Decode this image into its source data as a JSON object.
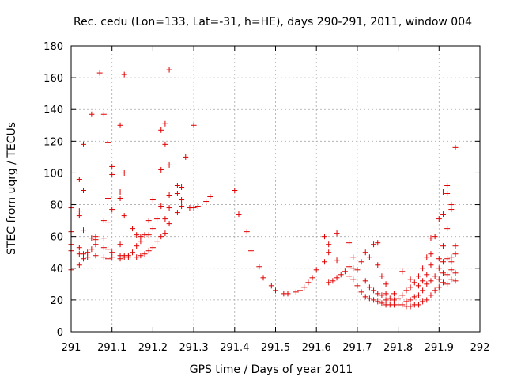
{
  "chart_data": {
    "type": "scatter",
    "title": "Rec. cedu (Lon=133, Lat=-31, h=HE), days 290-291, 2011, window 004",
    "xlabel": "GPS time / Days of year 2011",
    "ylabel": "STEC from uqrg / TECUs",
    "xlim": [
      291,
      292
    ],
    "ylim": [
      0,
      180
    ],
    "xticks": [
      291,
      291.1,
      291.2,
      291.3,
      291.4,
      291.5,
      291.6,
      291.7,
      291.8,
      291.9,
      292
    ],
    "xtick_labels": [
      "291",
      "291.1",
      "291.2",
      "291.3",
      "291.4",
      "291.5",
      "291.6",
      "291.7",
      "291.8",
      "291.9",
      "292"
    ],
    "yticks": [
      0,
      20,
      40,
      60,
      80,
      100,
      120,
      140,
      160,
      180
    ],
    "ytick_labels": [
      "0",
      "20",
      "40",
      "60",
      "80",
      "100",
      "120",
      "140",
      "160",
      "180"
    ],
    "grid": true,
    "marker": "+",
    "color": "#e00000",
    "series": [
      {
        "name": "STEC",
        "points": [
          [
            291.0,
            39
          ],
          [
            291.0,
            51
          ],
          [
            291.0,
            55
          ],
          [
            291.0,
            63
          ],
          [
            291.0,
            78
          ],
          [
            291.0,
            81
          ],
          [
            291.02,
            42
          ],
          [
            291.02,
            49
          ],
          [
            291.02,
            53
          ],
          [
            291.02,
            73
          ],
          [
            291.02,
            76
          ],
          [
            291.02,
            96
          ],
          [
            291.03,
            46
          ],
          [
            291.03,
            49
          ],
          [
            291.03,
            64
          ],
          [
            291.03,
            89
          ],
          [
            291.03,
            118
          ],
          [
            291.04,
            47
          ],
          [
            291.04,
            50
          ],
          [
            291.05,
            52
          ],
          [
            291.05,
            59
          ],
          [
            291.05,
            137
          ],
          [
            291.06,
            48
          ],
          [
            291.06,
            55
          ],
          [
            291.06,
            58
          ],
          [
            291.06,
            60
          ],
          [
            291.07,
            163
          ],
          [
            291.08,
            47
          ],
          [
            291.08,
            53
          ],
          [
            291.08,
            59
          ],
          [
            291.08,
            70
          ],
          [
            291.08,
            137
          ],
          [
            291.09,
            46
          ],
          [
            291.09,
            52
          ],
          [
            291.09,
            69
          ],
          [
            291.09,
            84
          ],
          [
            291.09,
            119
          ],
          [
            291.1,
            47
          ],
          [
            291.1,
            50
          ],
          [
            291.1,
            77
          ],
          [
            291.1,
            99
          ],
          [
            291.1,
            104
          ],
          [
            291.12,
            46
          ],
          [
            291.12,
            48
          ],
          [
            291.12,
            55
          ],
          [
            291.12,
            84
          ],
          [
            291.12,
            88
          ],
          [
            291.12,
            130
          ],
          [
            291.13,
            47
          ],
          [
            291.13,
            48
          ],
          [
            291.13,
            73
          ],
          [
            291.13,
            100
          ],
          [
            291.13,
            162
          ],
          [
            291.14,
            47
          ],
          [
            291.14,
            48
          ],
          [
            291.15,
            50
          ],
          [
            291.15,
            65
          ],
          [
            291.16,
            47
          ],
          [
            291.16,
            54
          ],
          [
            291.16,
            61
          ],
          [
            291.17,
            48
          ],
          [
            291.17,
            57
          ],
          [
            291.17,
            60
          ],
          [
            291.18,
            49
          ],
          [
            291.18,
            61
          ],
          [
            291.19,
            51
          ],
          [
            291.19,
            61
          ],
          [
            291.19,
            70
          ],
          [
            291.2,
            53
          ],
          [
            291.2,
            65
          ],
          [
            291.2,
            83
          ],
          [
            291.21,
            57
          ],
          [
            291.21,
            71
          ],
          [
            291.22,
            60
          ],
          [
            291.22,
            79
          ],
          [
            291.22,
            102
          ],
          [
            291.22,
            127
          ],
          [
            291.23,
            62
          ],
          [
            291.23,
            71
          ],
          [
            291.23,
            118
          ],
          [
            291.23,
            131
          ],
          [
            291.24,
            68
          ],
          [
            291.24,
            78
          ],
          [
            291.24,
            86
          ],
          [
            291.24,
            105
          ],
          [
            291.24,
            165
          ],
          [
            291.26,
            75
          ],
          [
            291.26,
            87
          ],
          [
            291.26,
            92
          ],
          [
            291.27,
            79
          ],
          [
            291.27,
            83
          ],
          [
            291.27,
            91
          ],
          [
            291.28,
            110
          ],
          [
            291.29,
            78
          ],
          [
            291.3,
            78
          ],
          [
            291.3,
            130
          ],
          [
            291.31,
            79
          ],
          [
            291.33,
            82
          ],
          [
            291.34,
            85
          ],
          [
            291.4,
            89
          ],
          [
            291.41,
            74
          ],
          [
            291.43,
            63
          ],
          [
            291.44,
            51
          ],
          [
            291.46,
            41
          ],
          [
            291.47,
            34
          ],
          [
            291.49,
            29
          ],
          [
            291.5,
            26
          ],
          [
            291.52,
            24
          ],
          [
            291.53,
            24
          ],
          [
            291.55,
            25
          ],
          [
            291.56,
            26
          ],
          [
            291.57,
            28
          ],
          [
            291.58,
            31
          ],
          [
            291.59,
            34
          ],
          [
            291.6,
            39
          ],
          [
            291.62,
            44
          ],
          [
            291.62,
            60
          ],
          [
            291.63,
            31
          ],
          [
            291.63,
            50
          ],
          [
            291.63,
            55
          ],
          [
            291.64,
            32
          ],
          [
            291.65,
            34
          ],
          [
            291.65,
            62
          ],
          [
            291.65,
            45
          ],
          [
            291.66,
            36
          ],
          [
            291.67,
            38
          ],
          [
            291.68,
            35
          ],
          [
            291.68,
            41
          ],
          [
            291.68,
            56
          ],
          [
            291.69,
            33
          ],
          [
            291.69,
            40
          ],
          [
            291.69,
            47
          ],
          [
            291.7,
            29
          ],
          [
            291.7,
            39
          ],
          [
            291.71,
            25
          ],
          [
            291.71,
            44
          ],
          [
            291.72,
            22
          ],
          [
            291.72,
            32
          ],
          [
            291.72,
            50
          ],
          [
            291.73,
            21
          ],
          [
            291.73,
            28
          ],
          [
            291.73,
            47
          ],
          [
            291.74,
            20
          ],
          [
            291.74,
            26
          ],
          [
            291.74,
            55
          ],
          [
            291.75,
            19
          ],
          [
            291.75,
            24
          ],
          [
            291.75,
            42
          ],
          [
            291.75,
            56
          ],
          [
            291.76,
            18
          ],
          [
            291.76,
            23
          ],
          [
            291.76,
            35
          ],
          [
            291.77,
            17
          ],
          [
            291.77,
            20
          ],
          [
            291.77,
            24
          ],
          [
            291.77,
            30
          ],
          [
            291.78,
            17
          ],
          [
            291.78,
            21
          ],
          [
            291.79,
            17
          ],
          [
            291.79,
            20
          ],
          [
            291.79,
            24
          ],
          [
            291.8,
            17
          ],
          [
            291.8,
            21
          ],
          [
            291.81,
            17
          ],
          [
            291.81,
            23
          ],
          [
            291.81,
            38
          ],
          [
            291.82,
            16
          ],
          [
            291.82,
            19
          ],
          [
            291.82,
            26
          ],
          [
            291.83,
            16
          ],
          [
            291.83,
            20
          ],
          [
            291.83,
            28
          ],
          [
            291.83,
            33
          ],
          [
            291.84,
            17
          ],
          [
            291.84,
            22
          ],
          [
            291.84,
            31
          ],
          [
            291.85,
            17
          ],
          [
            291.85,
            23
          ],
          [
            291.85,
            29
          ],
          [
            291.85,
            35
          ],
          [
            291.86,
            19
          ],
          [
            291.86,
            26
          ],
          [
            291.86,
            32
          ],
          [
            291.86,
            40
          ],
          [
            291.87,
            20
          ],
          [
            291.87,
            30
          ],
          [
            291.87,
            36
          ],
          [
            291.87,
            47
          ],
          [
            291.88,
            23
          ],
          [
            291.88,
            32
          ],
          [
            291.88,
            42
          ],
          [
            291.88,
            49
          ],
          [
            291.88,
            59
          ],
          [
            291.89,
            26
          ],
          [
            291.89,
            35
          ],
          [
            291.89,
            60
          ],
          [
            291.9,
            28
          ],
          [
            291.9,
            33
          ],
          [
            291.9,
            40
          ],
          [
            291.9,
            46
          ],
          [
            291.9,
            71
          ],
          [
            291.91,
            31
          ],
          [
            291.91,
            37
          ],
          [
            291.91,
            44
          ],
          [
            291.91,
            54
          ],
          [
            291.91,
            74
          ],
          [
            291.91,
            88
          ],
          [
            291.92,
            30
          ],
          [
            291.92,
            36
          ],
          [
            291.92,
            46
          ],
          [
            291.92,
            65
          ],
          [
            291.92,
            87
          ],
          [
            291.92,
            92
          ],
          [
            291.93,
            33
          ],
          [
            291.93,
            39
          ],
          [
            291.93,
            44
          ],
          [
            291.93,
            47
          ],
          [
            291.93,
            77
          ],
          [
            291.93,
            80
          ],
          [
            291.94,
            32
          ],
          [
            291.94,
            37
          ],
          [
            291.94,
            49
          ],
          [
            291.94,
            54
          ],
          [
            291.94,
            116
          ]
        ]
      }
    ]
  }
}
